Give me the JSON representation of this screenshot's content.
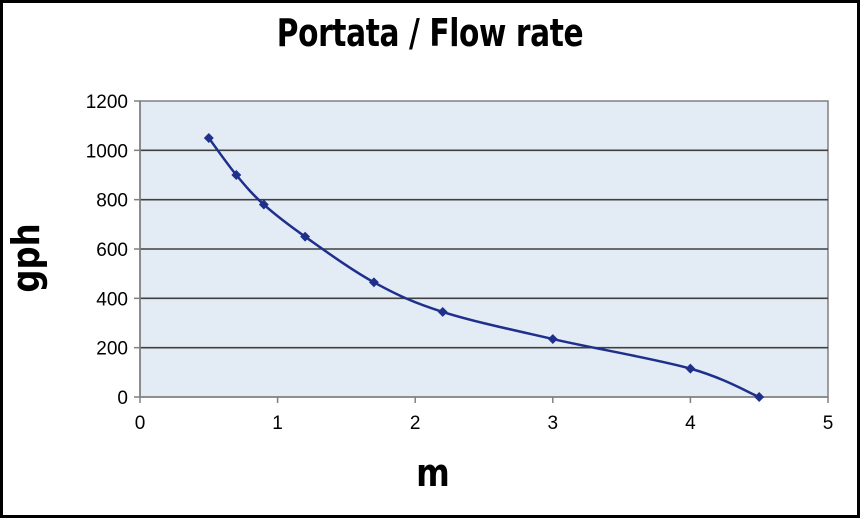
{
  "chart_data": {
    "type": "line",
    "title": "Portata / Flow rate",
    "xlabel": "m",
    "ylabel": "gph",
    "xlim": [
      0,
      5
    ],
    "ylim": [
      0,
      1200
    ],
    "xticks": [
      "0",
      "1",
      "2",
      "3",
      "4",
      "5"
    ],
    "yticks": [
      "0",
      "200",
      "400",
      "600",
      "800",
      "1000",
      "1200"
    ],
    "grid": "horizontal",
    "legend": "none",
    "series": [
      {
        "x": [
          0.5,
          0.7,
          0.9,
          1.2,
          1.7,
          2.2,
          3.0,
          4.0,
          4.5
        ],
        "y": [
          1050,
          900,
          780,
          650,
          465,
          345,
          235,
          115,
          0
        ]
      }
    ],
    "colors": {
      "plot_background": "#e3ebf4",
      "line": "#1f2f8c",
      "grid": "#404040",
      "axis": "#808080"
    }
  }
}
